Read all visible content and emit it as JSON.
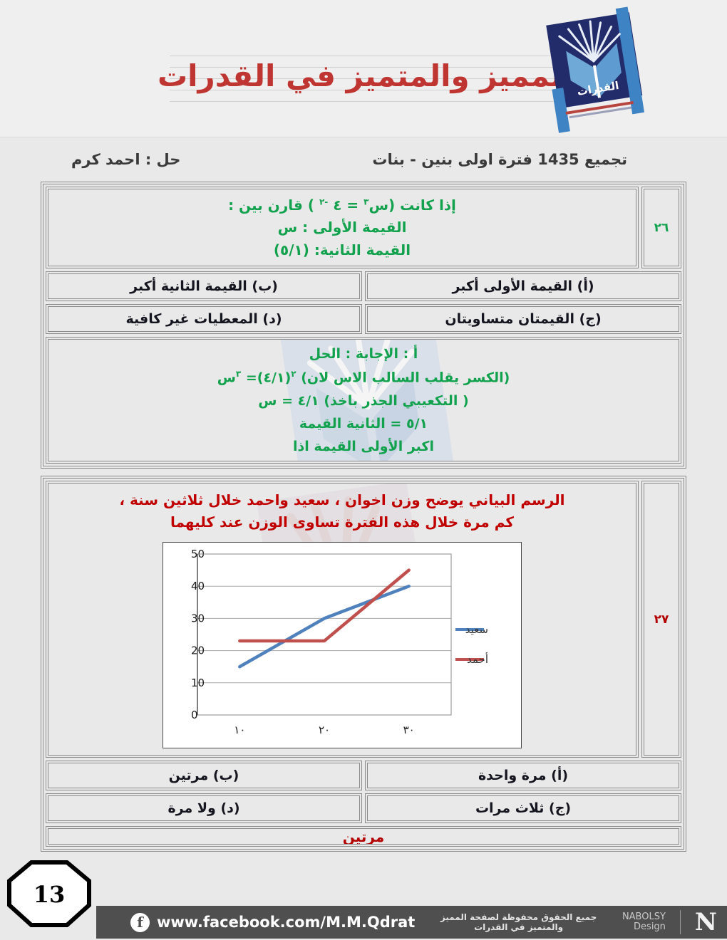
{
  "header": {
    "title": "المميز والمتميز في القدرات",
    "logo_label": "القدرات",
    "collection_line": "تجميع 1435 فترة اولى بنين - بنات",
    "solver_line": "حل : احمد كرم"
  },
  "q26": {
    "number": "٢٦",
    "stem": {
      "pre": "إذا كانت (س",
      "sup1": "٣",
      "mid": " = ٤ ",
      "sup2": "-٢",
      "post": " ) قارن بين :",
      "line2": "القيمة الأولى : س",
      "line3": "القيمة الثانية: (٥/١)"
    },
    "options": [
      "(أ) القيمة الأولى أكبر",
      "(ب) القيمة الثانية أكبر",
      "(ج) القيمتان متساويتان",
      "(د) المعطيات غير كافية"
    ],
    "solution": {
      "line1": "الحل : الإجابة : أ",
      "eq": {
        "p1": "س",
        "s1": "٣",
        "p2": " =(٤/١)",
        "s2": "٢",
        "p3": "(لان الاس السالب يقلب الكسر)"
      },
      "line3": "س = ٤/١ (باخذ الجذر التكعيبي )",
      "line4": "القيمة الثانية = ٥/١",
      "line5": "اذا القيمة الأولى اكبر"
    }
  },
  "q27": {
    "number": "٢٧",
    "stem_line1": "الرسم البياني يوضح وزن اخوان ، سعيد واحمد خلال ثلاثين سنة ،",
    "stem_line2": "كم مرة خلال هذه الفترة تساوى الوزن عند كليهما",
    "options": [
      "(أ) مرة واحدة",
      "(ب) مرتين",
      "(ج) ثلاث مرات",
      "(د) ولا مرة"
    ],
    "answer": "مرتين"
  },
  "chart_data": {
    "type": "line",
    "x": [
      "١٠",
      "٢٠",
      "٣٠"
    ],
    "series": [
      {
        "name": "سعيد",
        "color": "#4F81BD",
        "values": [
          15,
          30,
          40
        ]
      },
      {
        "name": "أحمد",
        "color": "#C0504D",
        "values": [
          23,
          23,
          45
        ]
      }
    ],
    "ylim": [
      0,
      50
    ],
    "yticks": [
      0,
      10,
      20,
      30,
      40,
      50
    ],
    "grid": true,
    "legend_position": "right"
  },
  "page": {
    "number": "13"
  },
  "footer": {
    "facebook_url": "www.facebook.com/M.M.Qdrat",
    "rights": "جميع الحقوق محفوظة لصفحة المميز والمتميز في القدرات",
    "brand_name": "NABOLSY",
    "brand_sub": "Design",
    "brand_initial": "N"
  }
}
